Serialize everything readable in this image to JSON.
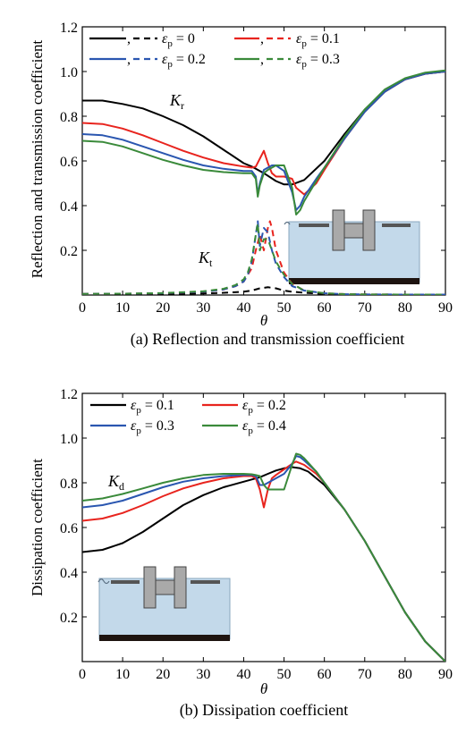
{
  "chart_data": [
    {
      "type": "line",
      "caption": "(a) Reflection and transmission coefficient",
      "xlabel": "θ",
      "ylabel": "Reflection and transmission coefficient",
      "xlim": [
        0,
        90
      ],
      "ylim": [
        0,
        1.2
      ],
      "xticks": [
        "0",
        "10",
        "20",
        "30",
        "40",
        "50",
        "60",
        "70",
        "80",
        "90"
      ],
      "yticks": [
        "0.2",
        "0.4",
        "0.6",
        "0.8",
        "1.0",
        "1.2"
      ],
      "legend_position": "top-left",
      "legend": [
        {
          "label": "ε",
          "sub": "p",
          "rest": " = 0",
          "color": "#000000"
        },
        {
          "label": "ε",
          "sub": "p",
          "rest": " = 0.1",
          "color": "#e8241e"
        },
        {
          "label": "ε",
          "sub": "p",
          "rest": " = 0.2",
          "color": "#2a56b0"
        },
        {
          "label": "ε",
          "sub": "p",
          "rest": " = 0.3",
          "color": "#3a8a3a"
        }
      ],
      "annotations": [
        {
          "main": "K",
          "sub": "r"
        },
        {
          "main": "K",
          "sub": "t"
        }
      ],
      "series": [
        {
          "group": "Kr",
          "style": "solid",
          "color": "#000000",
          "x": [
            0,
            5,
            10,
            15,
            20,
            25,
            30,
            35,
            40,
            42,
            45,
            48,
            50,
            52,
            55,
            60,
            65,
            70,
            75,
            80,
            85,
            90
          ],
          "y": [
            0.87,
            0.87,
            0.855,
            0.835,
            0.8,
            0.76,
            0.71,
            0.65,
            0.59,
            0.575,
            0.545,
            0.51,
            0.495,
            0.495,
            0.515,
            0.6,
            0.72,
            0.83,
            0.91,
            0.965,
            0.99,
            1.0
          ]
        },
        {
          "group": "Kr",
          "style": "solid",
          "color": "#e8241e",
          "x": [
            0,
            5,
            10,
            15,
            20,
            25,
            30,
            35,
            40,
            42,
            43,
            44,
            45,
            46,
            47,
            48,
            50,
            52,
            53,
            55,
            58,
            60,
            65,
            70,
            75,
            80,
            85,
            90
          ],
          "y": [
            0.77,
            0.765,
            0.745,
            0.715,
            0.68,
            0.645,
            0.615,
            0.59,
            0.575,
            0.57,
            0.575,
            0.61,
            0.645,
            0.59,
            0.545,
            0.53,
            0.53,
            0.52,
            0.48,
            0.45,
            0.5,
            0.56,
            0.7,
            0.82,
            0.91,
            0.965,
            0.99,
            1.0
          ]
        },
        {
          "group": "Kr",
          "style": "solid",
          "color": "#2a56b0",
          "x": [
            0,
            5,
            10,
            15,
            20,
            25,
            30,
            35,
            40,
            42,
            43,
            43.5,
            44,
            45,
            46,
            47,
            48,
            50,
            52,
            53,
            54,
            55,
            58,
            60,
            65,
            70,
            75,
            80,
            85,
            90
          ],
          "y": [
            0.72,
            0.715,
            0.695,
            0.665,
            0.635,
            0.605,
            0.58,
            0.565,
            0.555,
            0.555,
            0.53,
            0.45,
            0.5,
            0.56,
            0.57,
            0.58,
            0.58,
            0.555,
            0.46,
            0.38,
            0.4,
            0.44,
            0.52,
            0.57,
            0.7,
            0.82,
            0.91,
            0.965,
            0.99,
            1.0
          ]
        },
        {
          "group": "Kr",
          "style": "solid",
          "color": "#3a8a3a",
          "x": [
            0,
            5,
            10,
            15,
            20,
            25,
            30,
            35,
            40,
            42,
            43,
            43.5,
            44,
            45,
            46,
            47,
            48,
            50,
            52,
            53,
            54,
            55,
            58,
            60,
            65,
            70,
            75,
            80,
            85,
            90
          ],
          "y": [
            0.69,
            0.685,
            0.665,
            0.635,
            0.605,
            0.58,
            0.56,
            0.55,
            0.545,
            0.545,
            0.52,
            0.44,
            0.49,
            0.545,
            0.56,
            0.57,
            0.58,
            0.58,
            0.48,
            0.36,
            0.38,
            0.42,
            0.51,
            0.57,
            0.71,
            0.83,
            0.92,
            0.97,
            0.995,
            1.005
          ]
        },
        {
          "group": "Kt",
          "style": "dashed",
          "color": "#000000",
          "x": [
            0,
            10,
            20,
            30,
            35,
            40,
            42,
            44,
            46,
            48,
            50,
            52,
            55,
            60,
            65,
            70,
            80,
            90
          ],
          "y": [
            0.005,
            0.005,
            0.005,
            0.007,
            0.01,
            0.015,
            0.02,
            0.03,
            0.035,
            0.03,
            0.02,
            0.015,
            0.01,
            0.005,
            0.003,
            0.002,
            0.002,
            0.002
          ]
        },
        {
          "group": "Kt",
          "style": "dashed",
          "color": "#e8241e",
          "x": [
            0,
            10,
            20,
            30,
            35,
            38,
            40,
            42,
            43,
            44,
            45,
            46,
            46.5,
            47,
            48,
            50,
            52,
            55,
            60,
            65,
            70,
            80,
            90
          ],
          "y": [
            0.005,
            0.006,
            0.008,
            0.015,
            0.025,
            0.04,
            0.06,
            0.12,
            0.2,
            0.27,
            0.2,
            0.3,
            0.33,
            0.3,
            0.2,
            0.1,
            0.05,
            0.02,
            0.008,
            0.004,
            0.003,
            0.002,
            0.002
          ]
        },
        {
          "group": "Kt",
          "style": "dashed",
          "color": "#2a56b0",
          "x": [
            0,
            10,
            20,
            30,
            35,
            38,
            40,
            41,
            42,
            43,
            43.5,
            44,
            45,
            46,
            47,
            48,
            50,
            52,
            55,
            60,
            65,
            70,
            80,
            90
          ],
          "y": [
            0.005,
            0.006,
            0.008,
            0.015,
            0.025,
            0.04,
            0.06,
            0.09,
            0.15,
            0.27,
            0.33,
            0.22,
            0.3,
            0.28,
            0.2,
            0.14,
            0.08,
            0.04,
            0.02,
            0.008,
            0.004,
            0.003,
            0.002,
            0.002
          ]
        },
        {
          "group": "Kt",
          "style": "dashed",
          "color": "#3a8a3a",
          "x": [
            0,
            10,
            20,
            30,
            35,
            38,
            40,
            41,
            42,
            43,
            43.5,
            44,
            45,
            46,
            47,
            48,
            50,
            52,
            55,
            60,
            65,
            70,
            80,
            90
          ],
          "y": [
            0.005,
            0.006,
            0.009,
            0.017,
            0.028,
            0.045,
            0.07,
            0.1,
            0.16,
            0.27,
            0.32,
            0.2,
            0.25,
            0.25,
            0.2,
            0.15,
            0.09,
            0.05,
            0.02,
            0.008,
            0.004,
            0.003,
            0.002,
            0.002
          ]
        }
      ]
    },
    {
      "type": "line",
      "caption": "(b) Dissipation coefficient",
      "xlabel": "θ",
      "ylabel": "Dissipation coefficient",
      "xlim": [
        0,
        90
      ],
      "ylim": [
        0,
        1.2
      ],
      "xticks": [
        "0",
        "10",
        "20",
        "30",
        "40",
        "50",
        "60",
        "70",
        "80",
        "90"
      ],
      "yticks": [
        "0.2",
        "0.4",
        "0.6",
        "0.8",
        "1.0",
        "1.2"
      ],
      "legend_position": "top-left",
      "legend": [
        {
          "label": "ε",
          "sub": "p",
          "rest": " = 0.1",
          "color": "#000000"
        },
        {
          "label": "ε",
          "sub": "p",
          "rest": " = 0.2",
          "color": "#e8241e"
        },
        {
          "label": "ε",
          "sub": "p",
          "rest": " = 0.3",
          "color": "#2a56b0"
        },
        {
          "label": "ε",
          "sub": "p",
          "rest": " = 0.4",
          "color": "#3a8a3a"
        }
      ],
      "annotations": [
        {
          "main": "K",
          "sub": "d"
        }
      ],
      "series": [
        {
          "style": "solid",
          "color": "#000000",
          "x": [
            0,
            5,
            10,
            15,
            20,
            25,
            30,
            35,
            40,
            42,
            44,
            46,
            48,
            50,
            52,
            54,
            56,
            60,
            65,
            70,
            75,
            80,
            85,
            90
          ],
          "y": [
            0.49,
            0.5,
            0.53,
            0.58,
            0.64,
            0.7,
            0.745,
            0.78,
            0.805,
            0.815,
            0.825,
            0.84,
            0.855,
            0.865,
            0.87,
            0.865,
            0.85,
            0.79,
            0.68,
            0.54,
            0.38,
            0.22,
            0.09,
            0.0
          ]
        },
        {
          "style": "solid",
          "color": "#e8241e",
          "x": [
            0,
            5,
            10,
            15,
            20,
            25,
            30,
            35,
            40,
            42,
            43,
            44,
            45,
            46,
            47,
            48,
            50,
            52,
            53,
            55,
            58,
            60,
            65,
            70,
            75,
            80,
            85,
            90
          ],
          "y": [
            0.63,
            0.64,
            0.665,
            0.7,
            0.74,
            0.775,
            0.8,
            0.82,
            0.83,
            0.83,
            0.82,
            0.77,
            0.69,
            0.77,
            0.82,
            0.835,
            0.86,
            0.885,
            0.895,
            0.88,
            0.84,
            0.8,
            0.68,
            0.54,
            0.38,
            0.22,
            0.09,
            0.0
          ]
        },
        {
          "style": "solid",
          "color": "#2a56b0",
          "x": [
            0,
            5,
            10,
            15,
            20,
            25,
            30,
            35,
            40,
            42,
            43,
            44,
            45,
            46,
            47,
            48,
            50,
            52,
            53,
            54,
            55,
            58,
            60,
            65,
            70,
            75,
            80,
            85,
            90
          ],
          "y": [
            0.69,
            0.7,
            0.72,
            0.75,
            0.78,
            0.805,
            0.82,
            0.83,
            0.835,
            0.835,
            0.83,
            0.79,
            0.79,
            0.8,
            0.81,
            0.82,
            0.84,
            0.885,
            0.92,
            0.915,
            0.9,
            0.85,
            0.8,
            0.68,
            0.54,
            0.38,
            0.22,
            0.09,
            0.0
          ]
        },
        {
          "style": "solid",
          "color": "#3a8a3a",
          "x": [
            0,
            5,
            10,
            15,
            20,
            25,
            30,
            35,
            40,
            42,
            43,
            44,
            45,
            46,
            47,
            48,
            50,
            52,
            53,
            54,
            55,
            58,
            60,
            65,
            70,
            75,
            80,
            85,
            90
          ],
          "y": [
            0.72,
            0.73,
            0.75,
            0.775,
            0.8,
            0.82,
            0.835,
            0.84,
            0.84,
            0.838,
            0.835,
            0.83,
            0.79,
            0.77,
            0.77,
            0.77,
            0.77,
            0.88,
            0.93,
            0.925,
            0.91,
            0.85,
            0.8,
            0.68,
            0.54,
            0.38,
            0.22,
            0.09,
            0.0
          ]
        }
      ]
    }
  ]
}
